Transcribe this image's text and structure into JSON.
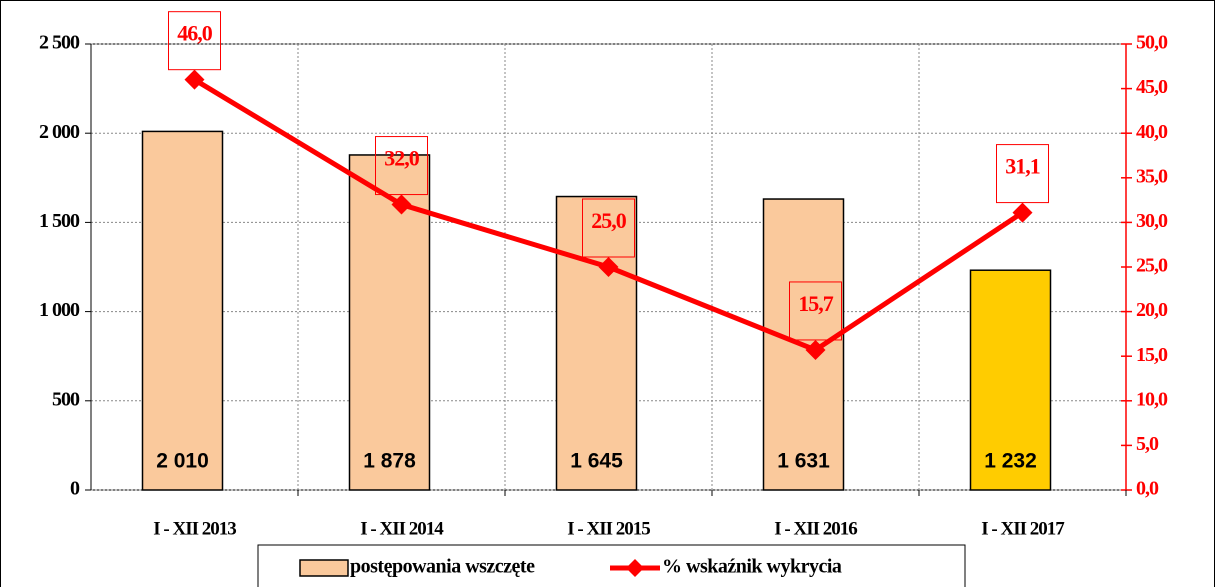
{
  "chart_data": {
    "type": "bar",
    "categories": [
      "I - XII 2013",
      "I - XII 2014",
      "I - XII 2015",
      "I - XII 2016",
      "I - XII 2017"
    ],
    "series": [
      {
        "name": "postępowania wszczęte",
        "type": "bar",
        "colors": [
          "#fac99c",
          "#fac99c",
          "#fac99c",
          "#fac99c",
          "#ffcc00"
        ],
        "values": [
          2010,
          1878,
          1645,
          1631,
          1232
        ],
        "value_labels": [
          "2 010",
          "1 878",
          "1 645",
          "1 631",
          "1 232"
        ]
      },
      {
        "name": "% wskaźnik wykrycia",
        "type": "line",
        "axis": "y2",
        "color": "#ff0000",
        "values": [
          46.0,
          32.0,
          25.0,
          15.7,
          31.1
        ],
        "value_labels": [
          "46,0",
          "32,0",
          "25,0",
          "15,7",
          "31,1"
        ]
      }
    ],
    "ylim": [
      0,
      2500
    ],
    "yticks": [
      0,
      500,
      {
        "value": 1000,
        "label": "1 000"
      },
      {
        "value": 1500,
        "label": "1 500"
      },
      {
        "value": 2000,
        "label": "2 000"
      },
      {
        "value": 2500,
        "label": "2 500"
      }
    ],
    "y2lim": [
      0,
      50
    ],
    "y2ticks": [
      {
        "value": 0,
        "label": "0,0"
      },
      {
        "value": 5,
        "label": "5,0"
      },
      {
        "value": 10,
        "label": "10,0"
      },
      {
        "value": 15,
        "label": "15,0"
      },
      {
        "value": 20,
        "label": "20,0"
      },
      {
        "value": 25,
        "label": "25,0"
      },
      {
        "value": 30,
        "label": "30,0"
      },
      {
        "value": 35,
        "label": "35,0"
      },
      {
        "value": 40,
        "label": "40,0"
      },
      {
        "value": 45,
        "label": "45,0"
      },
      {
        "value": 50,
        "label": "50,0"
      }
    ],
    "grid": true,
    "legend": "bottom"
  }
}
